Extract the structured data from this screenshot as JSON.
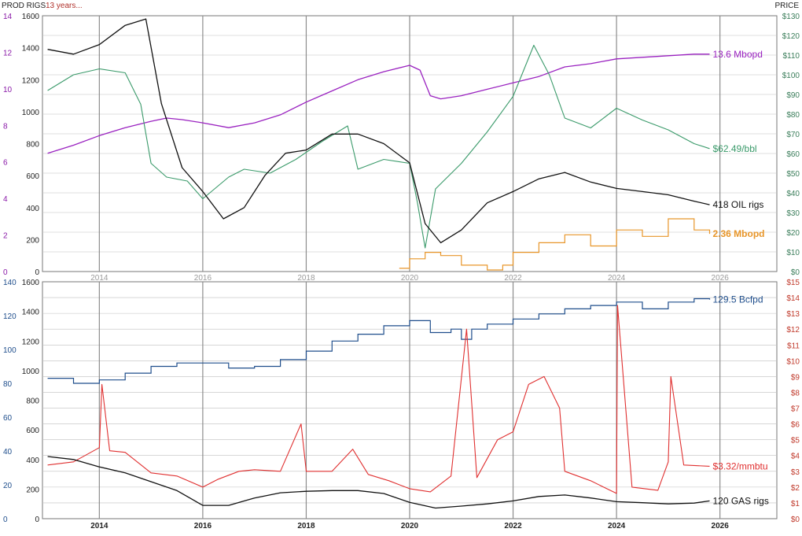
{
  "header": {
    "left_label": "PROD RIGS",
    "subtitle": "13 years...",
    "right_label": "PRICE"
  },
  "colors": {
    "prod_axis": "#8a1aa8",
    "gas_prod_axis": "#1f4e8c",
    "oil_price": "#3a9a6a",
    "oil_prod": "#9a22c0",
    "oil_rigs": "#111111",
    "ngl_prod": "#e8962a",
    "gas_prod": "#1f4e8c",
    "gas_price": "#e03030",
    "gas_rigs": "#111111",
    "grid": "#bfbfbf",
    "year_line": "#8c8c8c",
    "subtitle": "#b0302a"
  },
  "x_ticks": [
    "2014",
    "2016",
    "2018",
    "2020",
    "2022",
    "2024",
    "2026"
  ],
  "chart_data": [
    {
      "type": "line",
      "panel": "top",
      "x_range": [
        2012.9,
        2027.1
      ],
      "grid": true,
      "axes": {
        "left_outer": {
          "ticks": [
            "14",
            "12",
            "10",
            "8",
            "6",
            "4",
            "2",
            "0"
          ],
          "range": [
            0,
            16
          ]
        },
        "left_inner": {
          "ticks": [
            "1600",
            "1400",
            "1200",
            "1000",
            "800",
            "600",
            "400",
            "200",
            "0"
          ],
          "range": [
            0,
            1600
          ]
        },
        "right": {
          "ticks": [
            "$130",
            "$120",
            "$110",
            "$100",
            "$90",
            "$80",
            "$70",
            "$60",
            "$50",
            "$40",
            "$30",
            "$20",
            "$10",
            "$0"
          ],
          "range": [
            0,
            130
          ]
        }
      },
      "series": [
        {
          "key": "oil_prod",
          "axis": "left_outer",
          "label": "13.6 Mbopd",
          "x": [
            2013.0,
            2013.5,
            2014.0,
            2014.5,
            2015.0,
            2015.3,
            2015.6,
            2016.0,
            2016.5,
            2017.0,
            2017.5,
            2018.0,
            2018.5,
            2019.0,
            2019.5,
            2020.0,
            2020.2,
            2020.4,
            2020.6,
            2021.0,
            2021.5,
            2022.0,
            2022.5,
            2023.0,
            2023.5,
            2024.0,
            2024.5,
            2025.0,
            2025.5,
            2025.8
          ],
          "y": [
            7.4,
            7.9,
            8.5,
            9.0,
            9.4,
            9.6,
            9.5,
            9.3,
            9.0,
            9.3,
            9.8,
            10.6,
            11.3,
            12.0,
            12.5,
            12.9,
            12.6,
            11.0,
            10.8,
            11.0,
            11.4,
            11.8,
            12.2,
            12.8,
            13.0,
            13.3,
            13.4,
            13.5,
            13.6,
            13.6
          ]
        },
        {
          "key": "oil_price",
          "axis": "right",
          "label": "$62.49/bbl",
          "x": [
            2013.0,
            2013.5,
            2014.0,
            2014.5,
            2014.8,
            2015.0,
            2015.3,
            2015.7,
            2016.0,
            2016.5,
            2016.8,
            2017.3,
            2017.8,
            2018.3,
            2018.8,
            2019.0,
            2019.5,
            2020.0,
            2020.15,
            2020.3,
            2020.5,
            2021.0,
            2021.5,
            2022.0,
            2022.4,
            2022.7,
            2023.0,
            2023.5,
            2024.0,
            2024.5,
            2025.0,
            2025.5,
            2025.8
          ],
          "y": [
            92,
            100,
            103,
            101,
            85,
            55,
            48,
            46,
            37,
            48,
            52,
            50,
            57,
            66,
            74,
            52,
            57,
            55,
            35,
            12,
            42,
            55,
            71,
            89,
            115,
            100,
            78,
            73,
            83,
            77,
            72,
            65,
            62.49
          ]
        },
        {
          "key": "oil_rigs",
          "axis": "left_inner",
          "label": "418 OIL rigs",
          "x": [
            2013.0,
            2013.5,
            2014.0,
            2014.5,
            2014.9,
            2015.2,
            2015.6,
            2016.0,
            2016.4,
            2016.8,
            2017.2,
            2017.6,
            2018.0,
            2018.5,
            2019.0,
            2019.5,
            2020.0,
            2020.3,
            2020.6,
            2021.0,
            2021.5,
            2022.0,
            2022.5,
            2023.0,
            2023.5,
            2024.0,
            2024.5,
            2025.0,
            2025.5,
            2025.8
          ],
          "y": [
            1390,
            1360,
            1420,
            1540,
            1580,
            1050,
            650,
            500,
            330,
            400,
            600,
            740,
            760,
            860,
            860,
            800,
            680,
            300,
            180,
            260,
            430,
            500,
            580,
            620,
            560,
            520,
            500,
            480,
            440,
            418
          ]
        },
        {
          "key": "ngl_prod",
          "axis": "left_outer",
          "label": "2.36 Mbopd",
          "x": [
            2019.8,
            2020.0,
            2020.3,
            2020.6,
            2021.0,
            2021.5,
            2021.8,
            2022.0,
            2022.5,
            2023.0,
            2023.5,
            2024.0,
            2024.5,
            2025.0,
            2025.5,
            2025.8
          ],
          "y": [
            0.2,
            0.8,
            1.2,
            1.0,
            0.4,
            0.1,
            0.4,
            1.2,
            1.8,
            2.3,
            1.6,
            2.6,
            2.2,
            3.3,
            2.6,
            2.36
          ]
        }
      ]
    },
    {
      "type": "line",
      "panel": "bottom",
      "x_range": [
        2012.9,
        2027.1
      ],
      "grid": true,
      "axes": {
        "left_outer": {
          "ticks": [
            "140",
            "120",
            "100",
            "80",
            "60",
            "40",
            "20",
            "0"
          ],
          "range": [
            0,
            140
          ]
        },
        "left_inner": {
          "ticks": [
            "1600",
            "1400",
            "1200",
            "1000",
            "800",
            "600",
            "400",
            "200",
            "0"
          ],
          "range": [
            0,
            1600
          ]
        },
        "right": {
          "ticks": [
            "$15",
            "$14",
            "$13",
            "$12",
            "$11",
            "$10",
            "$9",
            "$8",
            "$7",
            "$6",
            "$5",
            "$4",
            "$3",
            "$2",
            "$1",
            "$0"
          ],
          "range": [
            0,
            15
          ]
        }
      },
      "series": [
        {
          "key": "gas_prod",
          "axis": "left_outer",
          "label": "129.5 Bcfpd",
          "x": [
            2013.0,
            2013.5,
            2014.0,
            2014.5,
            2015.0,
            2015.5,
            2016.0,
            2016.5,
            2017.0,
            2017.5,
            2018.0,
            2018.5,
            2019.0,
            2019.5,
            2020.0,
            2020.4,
            2020.8,
            2021.0,
            2021.2,
            2021.5,
            2022.0,
            2022.5,
            2023.0,
            2023.5,
            2024.0,
            2024.5,
            2025.0,
            2025.5,
            2025.8
          ],
          "y": [
            83,
            80,
            82,
            86,
            90,
            92,
            92,
            89,
            90,
            94,
            99,
            105,
            109,
            114,
            117,
            110,
            112,
            106,
            112,
            115,
            118,
            121,
            124,
            126,
            128,
            124,
            128,
            130,
            129.5
          ]
        },
        {
          "key": "gas_price",
          "axis": "right",
          "label": "$3.32/mmbtu",
          "x": [
            2013.0,
            2013.5,
            2014.0,
            2014.05,
            2014.2,
            2014.5,
            2015.0,
            2015.5,
            2016.0,
            2016.3,
            2016.7,
            2017.0,
            2017.5,
            2017.9,
            2018.0,
            2018.5,
            2018.9,
            2019.2,
            2019.6,
            2020.0,
            2020.4,
            2020.8,
            2021.1,
            2021.3,
            2021.7,
            2022.0,
            2022.3,
            2022.6,
            2022.9,
            2023.0,
            2023.5,
            2024.0,
            2024.02,
            2024.3,
            2024.8,
            2025.0,
            2025.05,
            2025.3,
            2025.8
          ],
          "y": [
            3.4,
            3.6,
            4.5,
            8.5,
            4.3,
            4.2,
            2.9,
            2.7,
            2.0,
            2.5,
            3.0,
            3.1,
            3.0,
            6.0,
            3.0,
            3.0,
            4.4,
            2.8,
            2.4,
            1.9,
            1.7,
            2.7,
            12.0,
            2.6,
            5.0,
            5.5,
            8.5,
            9.0,
            7.0,
            3.0,
            2.4,
            1.6,
            13.5,
            2.0,
            1.8,
            3.6,
            9.0,
            3.4,
            3.32
          ]
        },
        {
          "key": "gas_rigs",
          "axis": "left_inner",
          "label": "120 GAS rigs",
          "x": [
            2013.0,
            2013.5,
            2014.0,
            2014.5,
            2015.0,
            2015.5,
            2016.0,
            2016.5,
            2017.0,
            2017.5,
            2018.0,
            2018.5,
            2019.0,
            2019.5,
            2020.0,
            2020.5,
            2021.0,
            2021.5,
            2022.0,
            2022.5,
            2023.0,
            2023.5,
            2024.0,
            2024.5,
            2025.0,
            2025.5,
            2025.8
          ],
          "y": [
            420,
            400,
            350,
            310,
            250,
            190,
            90,
            90,
            140,
            175,
            185,
            190,
            190,
            170,
            110,
            72,
            85,
            100,
            120,
            150,
            160,
            140,
            115,
            108,
            100,
            105,
            120
          ]
        }
      ]
    }
  ]
}
